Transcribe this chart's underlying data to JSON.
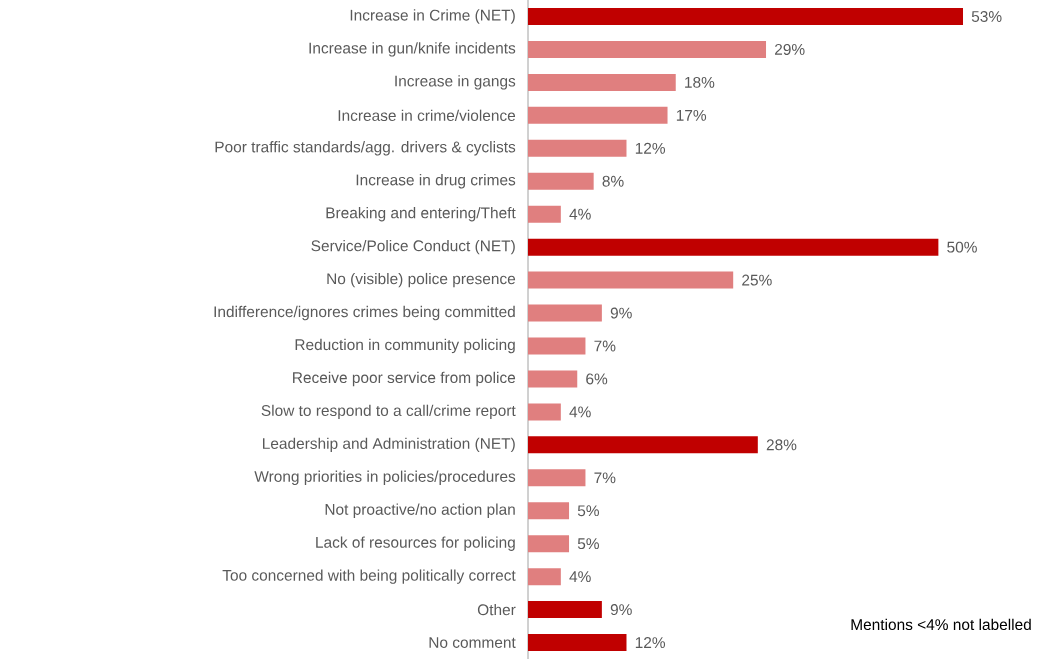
{
  "chart_data": {
    "type": "bar",
    "orientation": "horizontal",
    "tick_labels": "y",
    "categories": [
      "Increase in Crime (NET)",
      "Increase in gun/knife incidents",
      "Increase in gangs",
      "Increase in crime/violence",
      "Poor traffic standards/agg. drivers & cyclists",
      "Increase in drug crimes",
      "Breaking and entering/Theft",
      "Service/Police Conduct (NET)",
      "No (visible) police presence",
      "Indifference/ignores crimes being committed",
      "Reduction in community policing",
      "Receive poor service from police",
      "Slow to respond to a call/crime report",
      "Leadership and Administration (NET)",
      "Wrong priorities in policies/procedures",
      "Not proactive/no action plan",
      "Lack of resources for policing",
      "Too concerned with being politically correct",
      "Other",
      "No comment"
    ],
    "values": [
      53,
      29,
      18,
      17,
      12,
      8,
      4,
      50,
      25,
      9,
      7,
      6,
      4,
      28,
      7,
      5,
      5,
      4,
      9,
      12
    ],
    "value_labels": [
      "53%",
      "29%",
      "18%",
      "17%",
      "12%",
      "8%",
      "4%",
      "50%",
      "25%",
      "9%",
      "7%",
      "6%",
      "4%",
      "28%",
      "7%",
      "5%",
      "5%",
      "4%",
      "9%",
      "12%"
    ],
    "colors": [
      "#c00000",
      "#e07f7f",
      "#e07f7f",
      "#e07f7f",
      "#e07f7f",
      "#e07f7f",
      "#e07f7f",
      "#c00000",
      "#e07f7f",
      "#e07f7f",
      "#e07f7f",
      "#e07f7f",
      "#e07f7f",
      "#c00000",
      "#e07f7f",
      "#e07f7f",
      "#e07f7f",
      "#e07f7f",
      "#c00000",
      "#c00000"
    ],
    "annotations": [
      "Mentions <4% not labelled"
    ]
  }
}
